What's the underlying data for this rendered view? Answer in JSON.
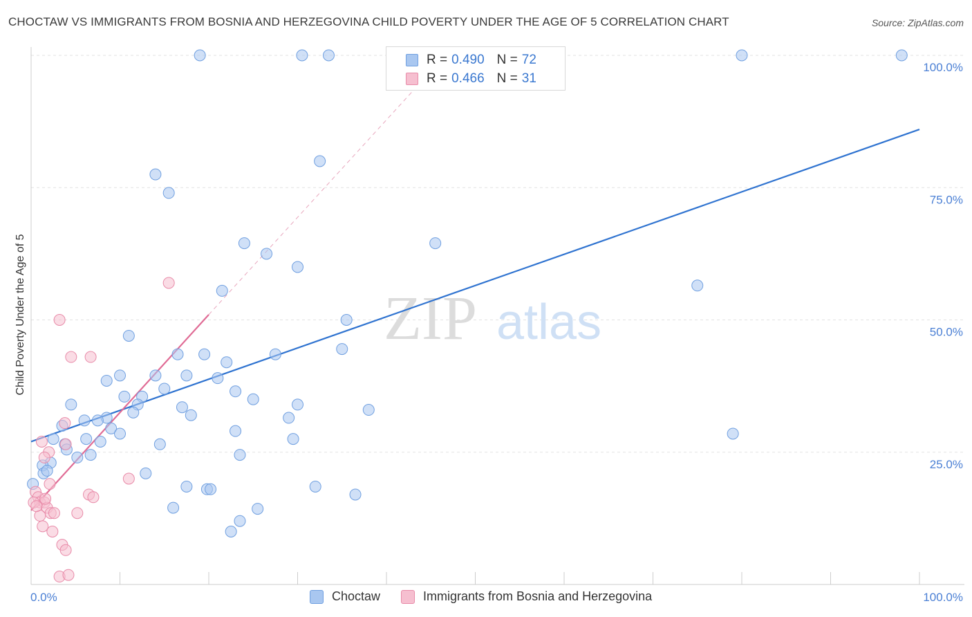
{
  "title": "CHOCTAW VS IMMIGRANTS FROM BOSNIA AND HERZEGOVINA CHILD POVERTY UNDER THE AGE OF 5 CORRELATION CHART",
  "source": "Source: ZipAtlas.com",
  "watermark": {
    "zip": "ZIP",
    "atlas": "atlas"
  },
  "legend": {
    "rows": [
      {
        "r_label": "R =",
        "r": "0.490",
        "n_label": "N =",
        "n": "72",
        "color": "#a9c7f0",
        "border": "#6f9fe0"
      },
      {
        "r_label": "R =",
        "r": "0.466",
        "n_label": "N =",
        "n": "31",
        "color": "#f6bfd0",
        "border": "#e88aa8"
      }
    ]
  },
  "bottom_legend": [
    "Choctaw",
    "Immigrants from Bosnia and Herzegovina"
  ],
  "chart_data": {
    "type": "scatter",
    "title": "CHOCTAW VS IMMIGRANTS FROM BOSNIA AND HERZEGOVINA CHILD POVERTY UNDER THE AGE OF 5 CORRELATION CHART",
    "xlabel": "",
    "ylabel": "Child Poverty Under the Age of 5",
    "xlim": [
      0,
      100
    ],
    "ylim": [
      0,
      100
    ],
    "x_tick_labels": [
      "0.0%",
      "100.0%"
    ],
    "y_tick_labels": [
      "25.0%",
      "50.0%",
      "75.0%",
      "100.0%"
    ],
    "y_ticks": [
      25,
      50,
      75,
      100
    ],
    "grid": true,
    "legend_placement": "top-center",
    "series": [
      {
        "name": "Choctaw",
        "color": "#6f9fe0",
        "fill": "#a9c7f0",
        "trend": {
          "x": [
            0,
            100
          ],
          "y": [
            27,
            86
          ]
        },
        "points": [
          [
            19,
            100
          ],
          [
            30.5,
            100
          ],
          [
            33.5,
            100
          ],
          [
            80,
            100
          ],
          [
            98,
            100
          ],
          [
            32.5,
            80
          ],
          [
            14,
            77.5
          ],
          [
            15.5,
            74
          ],
          [
            24,
            64.5
          ],
          [
            26.5,
            62.5
          ],
          [
            30,
            60
          ],
          [
            45.5,
            64.5
          ],
          [
            75,
            56.5
          ],
          [
            21.5,
            55.5
          ],
          [
            35.5,
            50
          ],
          [
            11,
            47
          ],
          [
            35,
            44.5
          ],
          [
            16.5,
            43.5
          ],
          [
            19.5,
            43.5
          ],
          [
            27.5,
            43.5
          ],
          [
            22,
            42
          ],
          [
            8.5,
            38.5
          ],
          [
            10,
            39.5
          ],
          [
            14,
            39.5
          ],
          [
            17.5,
            39.5
          ],
          [
            21,
            39
          ],
          [
            15,
            37
          ],
          [
            23,
            36.5
          ],
          [
            10.5,
            35.5
          ],
          [
            12.5,
            35.5
          ],
          [
            25,
            35
          ],
          [
            30,
            34
          ],
          [
            4.5,
            34
          ],
          [
            12,
            34
          ],
          [
            17,
            33.5
          ],
          [
            38,
            33
          ],
          [
            11.5,
            32.5
          ],
          [
            18,
            32
          ],
          [
            29,
            31.5
          ],
          [
            8.5,
            31.5
          ],
          [
            6,
            31
          ],
          [
            7.5,
            31
          ],
          [
            3.5,
            30
          ],
          [
            9,
            29.5
          ],
          [
            23,
            29
          ],
          [
            10,
            28.5
          ],
          [
            79,
            28.5
          ],
          [
            2.5,
            27.5
          ],
          [
            6.2,
            27.5
          ],
          [
            7.8,
            27
          ],
          [
            29.5,
            27.5
          ],
          [
            14.5,
            26.5
          ],
          [
            3.8,
            26.5
          ],
          [
            4,
            25.5
          ],
          [
            6.7,
            24.5
          ],
          [
            5.2,
            24
          ],
          [
            23.5,
            24.5
          ],
          [
            2.2,
            23
          ],
          [
            1.3,
            22.5
          ],
          [
            1.4,
            21
          ],
          [
            12.9,
            21
          ],
          [
            1.8,
            21.5
          ],
          [
            17.5,
            18.5
          ],
          [
            19.8,
            18
          ],
          [
            20.2,
            18
          ],
          [
            32,
            18.5
          ],
          [
            36.5,
            17
          ],
          [
            16,
            14.5
          ],
          [
            25.5,
            14.3
          ],
          [
            23.5,
            12
          ],
          [
            22.5,
            10
          ],
          [
            0.2,
            19
          ]
        ]
      },
      {
        "name": "Immigrants from Bosnia and Herzegovina",
        "color": "#e88aa8",
        "fill": "#f6bfd0",
        "trend": {
          "x": [
            0,
            20
          ],
          "y": [
            14,
            51
          ]
        },
        "trend_extension": {
          "x": [
            20,
            45
          ],
          "y": [
            51,
            97
          ]
        },
        "points": [
          [
            15.5,
            57
          ],
          [
            3.2,
            50
          ],
          [
            4.5,
            43
          ],
          [
            6.7,
            43
          ],
          [
            3.8,
            30.5
          ],
          [
            1.2,
            27
          ],
          [
            3.9,
            26.5
          ],
          [
            2,
            25
          ],
          [
            1.5,
            24
          ],
          [
            11,
            20
          ],
          [
            2.1,
            19
          ],
          [
            0.5,
            17.5
          ],
          [
            6.5,
            17
          ],
          [
            0.8,
            16.5
          ],
          [
            7,
            16.5
          ],
          [
            1,
            15.5
          ],
          [
            1.5,
            15.5
          ],
          [
            0.3,
            15.5
          ],
          [
            1.8,
            14.5
          ],
          [
            2.2,
            13.5
          ],
          [
            5.2,
            13.5
          ],
          [
            2.6,
            13.5
          ],
          [
            1,
            13
          ],
          [
            1.3,
            11
          ],
          [
            2.4,
            10
          ],
          [
            3.5,
            7.5
          ],
          [
            3.9,
            6.5
          ],
          [
            3.2,
            1.5
          ],
          [
            4.2,
            1.8
          ],
          [
            0.6,
            14.8
          ],
          [
            1.6,
            16.2
          ]
        ]
      }
    ]
  }
}
